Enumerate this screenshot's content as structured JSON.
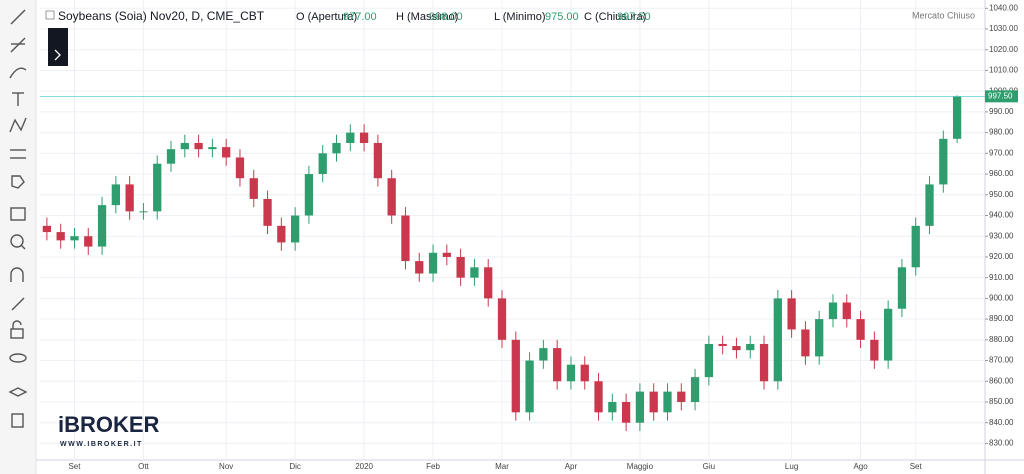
{
  "chart_data": {
    "type": "candlestick",
    "title": "Soybeans (Soia) Nov20, D, CME_CBT",
    "legend_items": [
      {
        "label": "O (Apertura)",
        "value": "977.00"
      },
      {
        "label": "H (Massimo)",
        "value": "998.00"
      },
      {
        "label": "L (Minimo)",
        "value": "975.00"
      },
      {
        "label": "C (Chiusura)",
        "value": "997.50"
      }
    ],
    "status": "Mercato Chiuso",
    "last_label": "997.50",
    "brand": {
      "name": "iBROKER",
      "url": "WWW.IBROKER.IT"
    },
    "up_color": "#2e9e6e",
    "down_color": "#c9384c",
    "categories": [
      null,
      null,
      "Set",
      null,
      null,
      null,
      null,
      "Ott",
      null,
      null,
      null,
      null,
      null,
      "Nov",
      null,
      null,
      null,
      null,
      "Dic",
      null,
      null,
      null,
      null,
      "2020",
      null,
      null,
      null,
      null,
      "Feb",
      null,
      null,
      null,
      null,
      "Mar",
      null,
      null,
      null,
      null,
      "Apr",
      null,
      null,
      null,
      null,
      "Maggio",
      null,
      null,
      null,
      null,
      "Giu",
      null,
      null,
      null,
      null,
      null,
      "Lug",
      null,
      null,
      null,
      null,
      "Ago",
      null,
      null,
      null,
      "Set",
      null,
      null,
      null
    ],
    "open": [
      935,
      932,
      928,
      930,
      925,
      945,
      955,
      942,
      942,
      965,
      972,
      975,
      972,
      973,
      968,
      958,
      948,
      935,
      927,
      940,
      960,
      970,
      975,
      980,
      975,
      958,
      940,
      918,
      912,
      922,
      920,
      910,
      915,
      900,
      880,
      845,
      870,
      876,
      860,
      868,
      860,
      845,
      850,
      840,
      855,
      845,
      855,
      850,
      862,
      878,
      877,
      875,
      878,
      860,
      900,
      885,
      872,
      890,
      898,
      890,
      880,
      870,
      895,
      915,
      935,
      955,
      977
    ],
    "high": [
      939,
      936,
      934,
      934,
      949,
      959,
      959,
      946,
      969,
      976,
      979,
      979,
      977,
      977,
      972,
      962,
      952,
      939,
      944,
      964,
      974,
      979,
      984,
      984,
      979,
      962,
      944,
      922,
      926,
      926,
      924,
      919,
      919,
      904,
      884,
      874,
      880,
      880,
      872,
      872,
      864,
      854,
      854,
      859,
      859,
      859,
      859,
      866,
      882,
      882,
      881,
      882,
      882,
      904,
      904,
      889,
      894,
      902,
      902,
      894,
      884,
      899,
      919,
      939,
      959,
      981,
      998
    ],
    "low": [
      928,
      924,
      924,
      921,
      921,
      941,
      938,
      938,
      938,
      961,
      968,
      968,
      968,
      964,
      954,
      944,
      931,
      923,
      923,
      936,
      956,
      966,
      971,
      971,
      954,
      936,
      914,
      908,
      908,
      916,
      906,
      906,
      896,
      876,
      841,
      841,
      866,
      856,
      856,
      856,
      841,
      841,
      836,
      836,
      841,
      841,
      846,
      846,
      858,
      873,
      871,
      871,
      856,
      856,
      881,
      868,
      868,
      886,
      886,
      876,
      866,
      866,
      891,
      911,
      931,
      951,
      975
    ],
    "close": [
      932,
      928,
      930,
      925,
      945,
      955,
      942,
      942,
      965,
      972,
      975,
      972,
      973,
      968,
      958,
      948,
      935,
      927,
      940,
      960,
      970,
      975,
      980,
      975,
      958,
      940,
      918,
      912,
      922,
      920,
      910,
      915,
      900,
      880,
      845,
      870,
      876,
      860,
      868,
      860,
      845,
      850,
      840,
      855,
      845,
      855,
      850,
      862,
      878,
      877,
      875,
      878,
      860,
      900,
      885,
      872,
      890,
      898,
      890,
      880,
      870,
      895,
      915,
      935,
      955,
      977,
      997.5
    ],
    "ylim": [
      822,
      1044
    ],
    "yticks": [
      {
        "value": 830,
        "label": "830.00"
      },
      {
        "value": 840,
        "label": "840.00"
      },
      {
        "value": 850,
        "label": "850.00"
      },
      {
        "value": 860,
        "label": "860.00"
      },
      {
        "value": 870,
        "label": "870.00"
      },
      {
        "value": 880,
        "label": "880.00"
      },
      {
        "value": 890,
        "label": "890.00"
      },
      {
        "value": 900,
        "label": "900.00"
      },
      {
        "value": 910,
        "label": "910.00"
      },
      {
        "value": 920,
        "label": "920.00"
      },
      {
        "value": 930,
        "label": "930.00"
      },
      {
        "value": 940,
        "label": "940.00"
      },
      {
        "value": 950,
        "label": "950.00"
      },
      {
        "value": 960,
        "label": "960.00"
      },
      {
        "value": 970,
        "label": "970.00"
      },
      {
        "value": 980,
        "label": "980.00"
      },
      {
        "value": 990,
        "label": "990.00"
      },
      {
        "value": 1000,
        "label": "1000.00"
      },
      {
        "value": 1010,
        "label": "1010.00"
      },
      {
        "value": 1020,
        "label": "1020.00"
      },
      {
        "value": 1030,
        "label": "1030.00"
      },
      {
        "value": 1040,
        "label": "1040.00"
      }
    ],
    "grid": true
  }
}
